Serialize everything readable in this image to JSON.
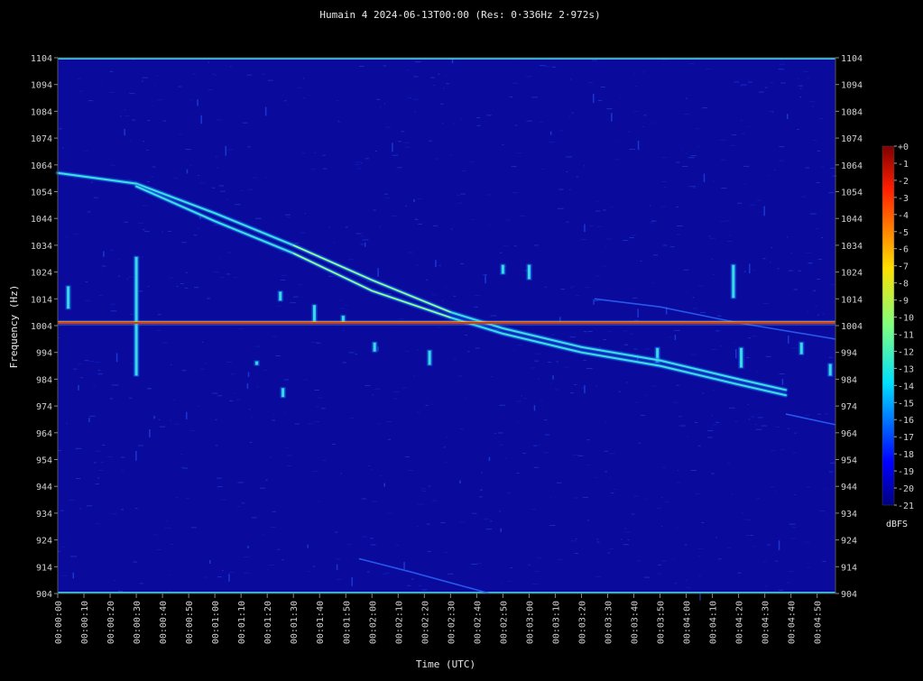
{
  "chart_data": {
    "type": "heatmap",
    "title": "Humain 4 2024-06-13T00:00 (Res: 0·336Hz 2·972s)",
    "xlabel": "Time (UTC)",
    "ylabel": "Frequency (Hz)",
    "y_ticks": [
      1104,
      1094,
      1084,
      1074,
      1064,
      1054,
      1044,
      1034,
      1024,
      1014,
      1004,
      994,
      984,
      974,
      964,
      954,
      944,
      934,
      924,
      914,
      904
    ],
    "ylim": [
      904,
      1104
    ],
    "x_ticks": [
      "00:00:00",
      "00:00:10",
      "00:00:20",
      "00:00:30",
      "00:00:40",
      "00:00:50",
      "00:01:00",
      "00:01:10",
      "00:01:20",
      "00:01:30",
      "00:01:40",
      "00:01:50",
      "00:02:00",
      "00:02:10",
      "00:02:20",
      "00:02:30",
      "00:02:40",
      "00:02:50",
      "00:03:00",
      "00:03:10",
      "00:03:20",
      "00:03:30",
      "00:03:40",
      "00:03:50",
      "00:04:00",
      "00:04:10",
      "00:04:20",
      "00:04:30",
      "00:04:40",
      "00:04:50"
    ],
    "x_range_seconds": [
      0,
      297
    ],
    "colorbar": {
      "label": "dBFS",
      "ticks": [
        "+0",
        "-1",
        "-2",
        "-3",
        "-4",
        "-5",
        "-6",
        "-7",
        "-8",
        "-9",
        "-10",
        "-11",
        "-12",
        "-13",
        "-14",
        "-15",
        "-16",
        "-17",
        "-18",
        "-19",
        "-20",
        "-21"
      ],
      "range": [
        -21,
        0
      ],
      "colormap": "jet"
    },
    "colors": {
      "background_plot": "#0a0a9c",
      "carrier_line": "#ff2a00",
      "edge_line": "#38c8e8",
      "trace": "#3ee0d8"
    },
    "features": {
      "carrier_hz": 1005,
      "doppler_traces": [
        {
          "points": [
            [
              0,
              1061
            ],
            [
              30,
              1057
            ],
            [
              60,
              1046
            ],
            [
              90,
              1034
            ],
            [
              120,
              1021
            ],
            [
              150,
              1009
            ],
            [
              170,
              1003
            ],
            [
              200,
              996
            ],
            [
              230,
              991
            ],
            [
              260,
              984
            ],
            [
              278,
              980
            ]
          ]
        },
        {
          "points": [
            [
              30,
              1056
            ],
            [
              60,
              1043
            ],
            [
              90,
              1031
            ],
            [
              120,
              1017
            ],
            [
              150,
              1007
            ],
            [
              170,
              1001
            ],
            [
              200,
              994
            ],
            [
              230,
              989
            ],
            [
              260,
              982
            ],
            [
              278,
              978
            ]
          ]
        }
      ],
      "faint_traces": [
        {
          "points": [
            [
              205,
              1014
            ],
            [
              230,
              1011
            ],
            [
              260,
              1005
            ],
            [
              297,
              999
            ]
          ]
        },
        {
          "points": [
            [
              278,
              971
            ],
            [
              297,
              967
            ]
          ]
        },
        {
          "points": [
            [
              115,
              917
            ],
            [
              135,
              912
            ],
            [
              165,
              904
            ]
          ]
        }
      ],
      "bursts": [
        {
          "t": 4,
          "f_low": 1010,
          "f_high": 1019
        },
        {
          "t": 30,
          "f_low": 985,
          "f_high": 1030
        },
        {
          "t": 76,
          "f_low": 989,
          "f_high": 991
        },
        {
          "t": 86,
          "f_low": 977,
          "f_high": 981
        },
        {
          "t": 85,
          "f_low": 1013,
          "f_high": 1017
        },
        {
          "t": 98,
          "f_low": 1005,
          "f_high": 1012
        },
        {
          "t": 109,
          "f_low": 1005,
          "f_high": 1008
        },
        {
          "t": 121,
          "f_low": 994,
          "f_high": 998
        },
        {
          "t": 142,
          "f_low": 989,
          "f_high": 995
        },
        {
          "t": 170,
          "f_low": 1023,
          "f_high": 1027
        },
        {
          "t": 180,
          "f_low": 1021,
          "f_high": 1027
        },
        {
          "t": 229,
          "f_low": 990,
          "f_high": 996
        },
        {
          "t": 258,
          "f_low": 1014,
          "f_high": 1027
        },
        {
          "t": 261,
          "f_low": 988,
          "f_high": 996
        },
        {
          "t": 284,
          "f_low": 993,
          "f_high": 998
        },
        {
          "t": 295,
          "f_low": 985,
          "f_high": 990
        }
      ]
    }
  }
}
